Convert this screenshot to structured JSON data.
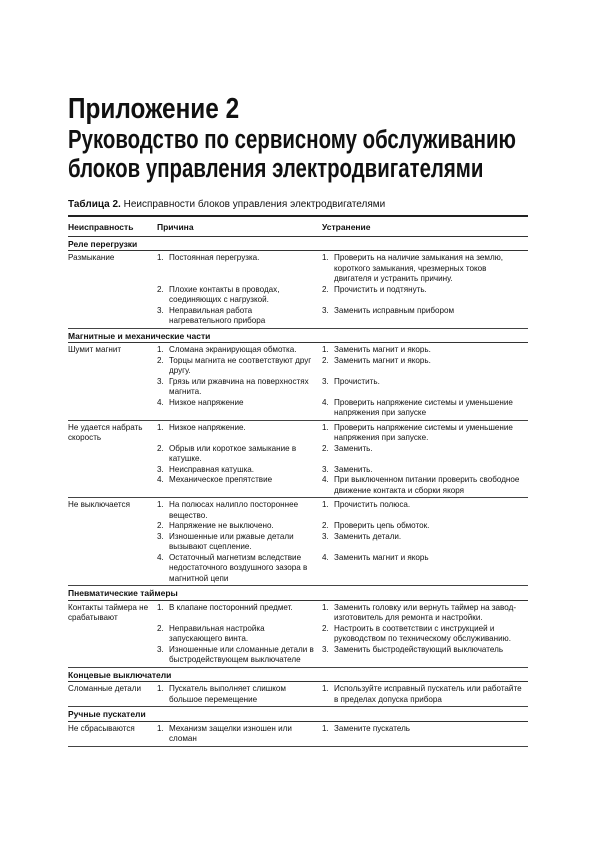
{
  "title": {
    "line1": "Приложение 2",
    "line2": "Руководство по сервисному обслуживанию",
    "line3": "блоков управления электродвигателями"
  },
  "caption": {
    "label": "Таблица 2.",
    "text": "Неисправности блоков управления электродвигателями"
  },
  "table": {
    "headers": [
      "Неисправность",
      "Причина",
      "Устранение"
    ],
    "sections": [
      {
        "title": "Реле перегрузки",
        "rows": [
          {
            "fault": "Размыкание",
            "items": [
              {
                "n": "1.",
                "cause": "Постоянная перегрузка.",
                "fix": "Проверить на наличие замыкания на землю, короткого замыкания, чрезмерных токов двигателя и устранить причину."
              },
              {
                "n": "2.",
                "cause": "Плохие контакты в проводах, соединяющих с нагрузкой.",
                "fix": "Прочистить и подтянуть."
              },
              {
                "n": "3.",
                "cause": "Неправильная работа нагревательного прибора",
                "fix": "Заменить исправным прибором"
              }
            ]
          }
        ]
      },
      {
        "title": "Магнитные и механические части",
        "rows": [
          {
            "fault": "Шумит магнит",
            "items": [
              {
                "n": "1.",
                "cause": "Сломана экранирующая обмотка.",
                "fix": "Заменить магнит и якорь."
              },
              {
                "n": "2.",
                "cause": "Торцы магнита не соответствуют друг другу.",
                "fix": "Заменить магнит и якорь."
              },
              {
                "n": "3.",
                "cause": "Грязь или ржавчина на поверхностях магнита.",
                "fix": "Прочистить."
              },
              {
                "n": "4.",
                "cause": "Низкое напряжение",
                "fix": "Проверить напряжение системы и уменьшение напряжения при запуске"
              }
            ]
          },
          {
            "fault": "Не удается набрать скорость",
            "items": [
              {
                "n": "1.",
                "cause": "Низкое напряжение.",
                "fix": "Проверить напряжение системы и уменьшение напряжения при запуске."
              },
              {
                "n": "2.",
                "cause": "Обрыв или короткое замыкание в катушке.",
                "fix": "Заменить."
              },
              {
                "n": "3.",
                "cause": "Неисправная катушка.",
                "fix": "Заменить."
              },
              {
                "n": "4.",
                "cause": "Механическое препятствие",
                "fix": "При выключенном питании проверить свободное движение контакта и сборки якоря"
              }
            ]
          },
          {
            "fault": "Не выключается",
            "items": [
              {
                "n": "1.",
                "cause": "На полюсах налипло постороннее вещество.",
                "fix": "Прочистить полюса."
              },
              {
                "n": "2.",
                "cause": "Напряжение не выключено.",
                "fix": "Проверить цепь обмоток."
              },
              {
                "n": "3.",
                "cause": "Изношенные или ржавые детали вызывают сцепление.",
                "fix": "Заменить детали."
              },
              {
                "n": "4.",
                "cause": "Остаточный магнетизм вследствие недостаточного воздушного зазора в магнитной цепи",
                "fix": "Заменить магнит и якорь"
              }
            ]
          }
        ]
      },
      {
        "title": "Пневматические таймеры",
        "rows": [
          {
            "fault": "Контакты таймера не срабатывают",
            "items": [
              {
                "n": "1.",
                "cause": "В клапане посторонний предмет.",
                "fix": "Заменить головку или вернуть таймер на завод-изготовитель для ремонта и настройки."
              },
              {
                "n": "2.",
                "cause": "Неправильная настройка запускающего винта.",
                "fix": "Настроить в соответствии с инструкцией и руководством по техническому обслуживанию."
              },
              {
                "n": "3.",
                "cause": "Изношенные или сломанные детали в быстродействующем выключателе",
                "fix": "Заменить быстродействующий выключатель"
              }
            ]
          }
        ]
      },
      {
        "title": "Концевые выключатели",
        "rows": [
          {
            "fault": "Сломанные детали",
            "items": [
              {
                "n": "1.",
                "cause": "Пускатель выполняет слишком большое перемещение",
                "fix": "Используйте исправный пускатель или работайте в пределах допуска прибора"
              }
            ]
          }
        ]
      },
      {
        "title": "Ручные пускатели",
        "rows": [
          {
            "fault": "Не сбрасываются",
            "items": [
              {
                "n": "1.",
                "cause": "Механизм защелки изношен или сломан",
                "fix": "Замените пускатель"
              }
            ]
          }
        ]
      }
    ]
  }
}
